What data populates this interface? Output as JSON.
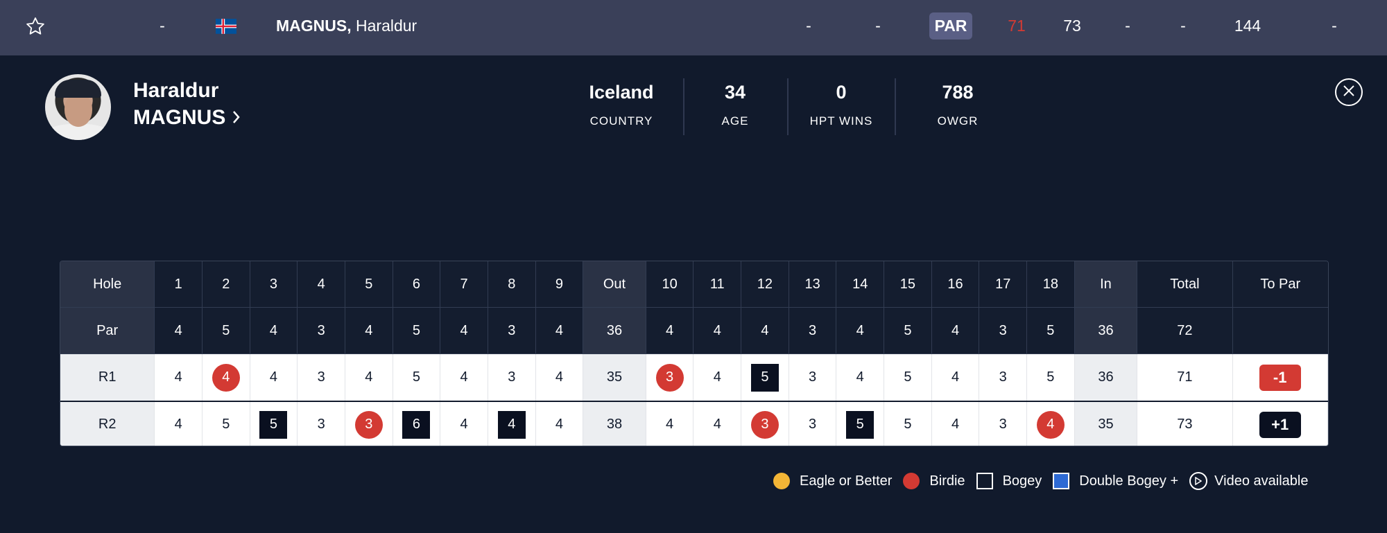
{
  "summary_row": {
    "position": "-",
    "player_name_last": "MAGNUS,",
    "player_name_first": "Haraldur",
    "col_a": "-",
    "col_b": "-",
    "par_label": "PAR",
    "r1": "71",
    "r2": "73",
    "r3": "-",
    "r4": "-",
    "total": "144",
    "last": "-"
  },
  "player": {
    "first_name": "Haraldur",
    "last_name": "MAGNUS",
    "stats": [
      {
        "value": "Iceland",
        "label": "COUNTRY"
      },
      {
        "value": "34",
        "label": "AGE"
      },
      {
        "value": "0",
        "label": "HPT WINS"
      },
      {
        "value": "788",
        "label": "OWGR"
      }
    ]
  },
  "scorecard": {
    "header": {
      "label": "Hole",
      "front": [
        "1",
        "2",
        "3",
        "4",
        "5",
        "6",
        "7",
        "8",
        "9"
      ],
      "out": "Out",
      "back": [
        "10",
        "11",
        "12",
        "13",
        "14",
        "15",
        "16",
        "17",
        "18"
      ],
      "in": "In",
      "total": "Total",
      "topar": "To Par"
    },
    "par": {
      "label": "Par",
      "front": [
        "4",
        "5",
        "4",
        "3",
        "4",
        "5",
        "4",
        "3",
        "4"
      ],
      "out": "36",
      "back": [
        "4",
        "4",
        "4",
        "3",
        "4",
        "5",
        "4",
        "3",
        "5"
      ],
      "in": "36",
      "total": "72",
      "topar": ""
    },
    "rounds": [
      {
        "label": "R1",
        "front": [
          "4",
          "4",
          "4",
          "3",
          "4",
          "5",
          "4",
          "3",
          "4"
        ],
        "front_marks": [
          "",
          "birdie",
          "",
          "",
          "",
          "",
          "",
          "",
          ""
        ],
        "out": "35",
        "back": [
          "3",
          "4",
          "5",
          "3",
          "4",
          "5",
          "4",
          "3",
          "5"
        ],
        "back_marks": [
          "birdie",
          "",
          "bogey",
          "",
          "",
          "",
          "",
          "",
          ""
        ],
        "in": "36",
        "total": "71",
        "topar": "-1",
        "topar_kind": "under"
      },
      {
        "label": "R2",
        "front": [
          "4",
          "5",
          "5",
          "3",
          "3",
          "6",
          "4",
          "4",
          "4"
        ],
        "front_marks": [
          "",
          "",
          "bogey",
          "",
          "birdie",
          "bogey",
          "",
          "bogey",
          ""
        ],
        "out": "38",
        "back": [
          "4",
          "4",
          "3",
          "3",
          "5",
          "5",
          "4",
          "3",
          "4"
        ],
        "back_marks": [
          "",
          "",
          "birdie",
          "",
          "bogey",
          "",
          "",
          "",
          "birdie"
        ],
        "in": "35",
        "total": "73",
        "topar": "+1",
        "topar_kind": "over"
      }
    ]
  },
  "legend": {
    "eagle": "Eagle or Better",
    "birdie": "Birdie",
    "bogey": "Bogey",
    "double": "Double Bogey +",
    "video": "Video available"
  },
  "colors": {
    "background": "#111a2c",
    "top_bar": "#3a4059",
    "birdie": "#d33a33",
    "eagle": "#f3b536",
    "bogey": "#0a1020",
    "double_bogey": "#2e6ad4"
  }
}
